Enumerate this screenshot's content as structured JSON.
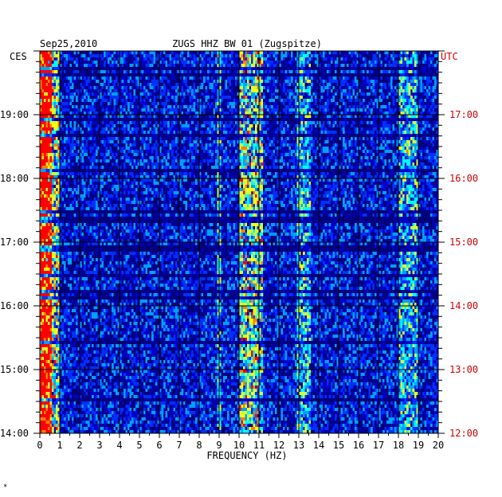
{
  "chart_data": {
    "type": "heatmap",
    "date": "Sep25,2010",
    "title": "ZUGS HHZ BW 01 (Zugspitze)",
    "left_axis_label": "CES",
    "right_axis_label": "UTC",
    "xlabel": "FREQUENCY (HZ)",
    "xlim": [
      0,
      20
    ],
    "x_ticks": [
      "0",
      "1",
      "2",
      "3",
      "4",
      "5",
      "6",
      "7",
      "8",
      "9",
      "10",
      "11",
      "12",
      "13",
      "14",
      "15",
      "16",
      "17",
      "18",
      "19",
      "20"
    ],
    "y_ticks_left": [
      "19:00",
      "18:00",
      "17:00",
      "16:00",
      "15:00",
      "14:00"
    ],
    "y_ticks_right": [
      "17:00",
      "16:00",
      "15:00",
      "14:00",
      "13:00",
      "12:00"
    ],
    "time_range_local": [
      "14:00",
      "20:00"
    ],
    "grid": true,
    "colormap": [
      "#00007a",
      "#0000c8",
      "#0030ff",
      "#00a0ff",
      "#00ffff",
      "#c8ff40",
      "#ffff00",
      "#ff8000",
      "#ff0000"
    ],
    "energy_bands_hz": [
      {
        "from": 0,
        "to": 1,
        "level": "high"
      },
      {
        "from": 8.9,
        "to": 9.1,
        "level": "medium"
      },
      {
        "from": 10.0,
        "to": 11.2,
        "level": "high"
      },
      {
        "from": 12.9,
        "to": 13.6,
        "level": "medium"
      },
      {
        "from": 18.0,
        "to": 19.0,
        "level": "medium"
      }
    ],
    "footnote": "*"
  }
}
